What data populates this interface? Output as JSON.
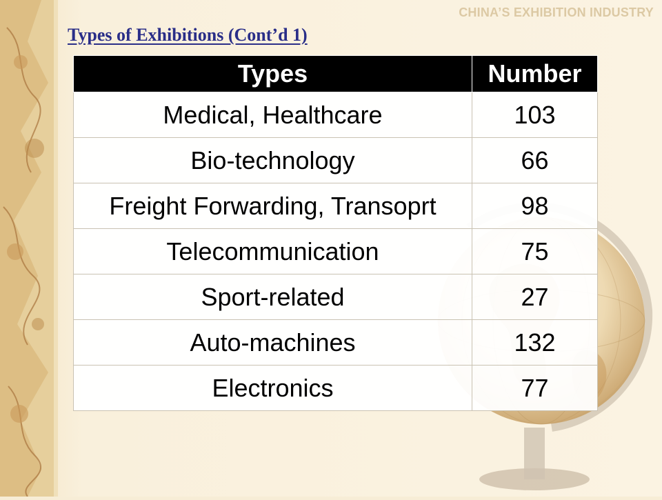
{
  "header": {
    "section_tag": "CHINA’S EXHIBITION INDUSTRY",
    "title": "Types of Exhibitions (Cont’d 1)"
  },
  "table": {
    "columns": [
      "Types",
      "Number"
    ],
    "rows": [
      {
        "type": "Medical, Healthcare",
        "number": "103"
      },
      {
        "type": "Bio-technology",
        "number": "66"
      },
      {
        "type": "Freight Forwarding, Transoprt",
        "number": "98"
      },
      {
        "type": "Telecommunication",
        "number": "75"
      },
      {
        "type": "Sport-related",
        "number": "27"
      },
      {
        "type": "Auto-machines",
        "number": "132"
      },
      {
        "type": "Electronics",
        "number": "77"
      }
    ]
  },
  "decor": {
    "left_strip": "old-map-illustration",
    "bottom_right": "antique-globe-illustration"
  },
  "colors": {
    "title": "#2a2e88",
    "header_bg": "#000000",
    "header_text": "#ffffff",
    "section_tag": "#dcc9a4",
    "background": "#fbf3e2"
  }
}
